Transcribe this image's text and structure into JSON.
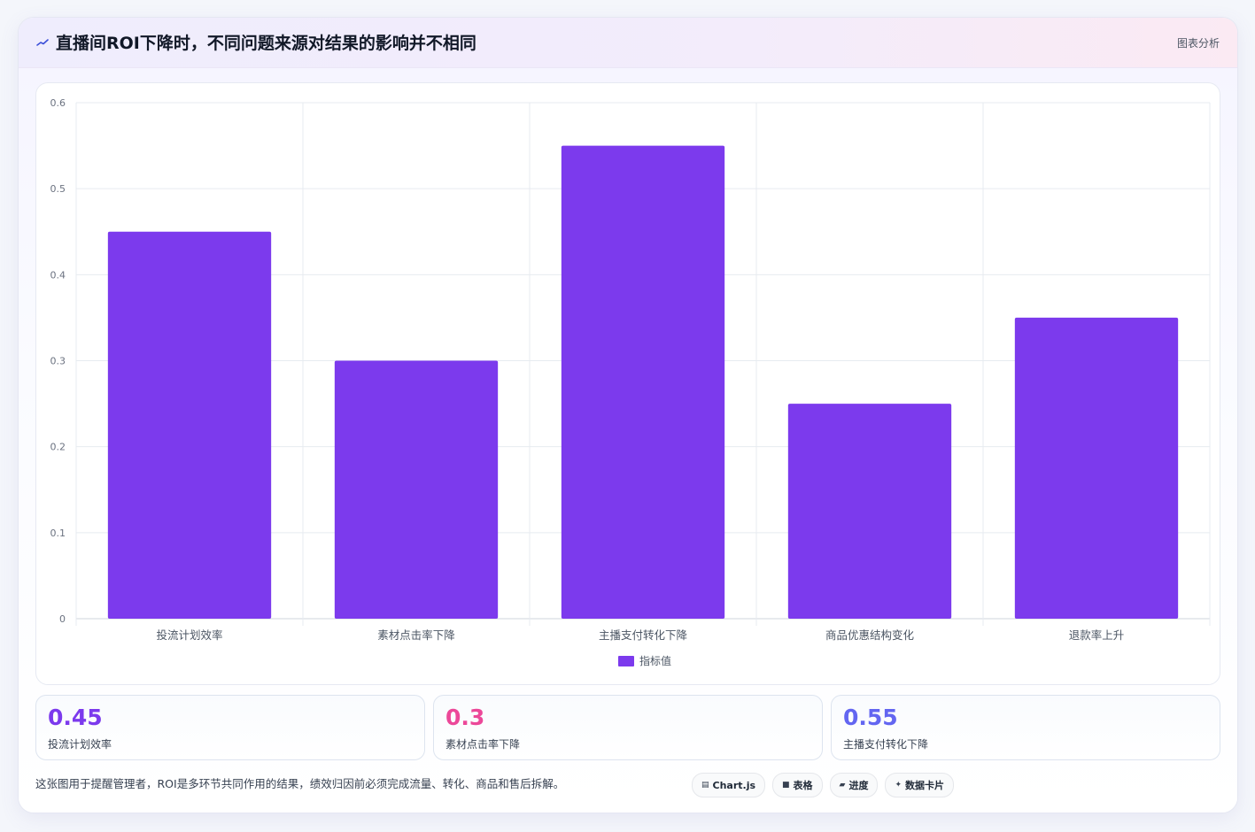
{
  "header": {
    "title": "直播间ROI下降时，不同问题来源对结果的影响并不相同",
    "tag": "图表分析",
    "icon": "trend-line-icon"
  },
  "chart_data": {
    "type": "bar",
    "categories": [
      "投流计划效率",
      "素材点击率下降",
      "主播支付转化下降",
      "商品优惠结构变化",
      "退款率上升"
    ],
    "series": [
      {
        "name": "指标值",
        "values": [
          0.45,
          0.3,
          0.55,
          0.25,
          0.35
        ],
        "color": "#7c3aed"
      }
    ],
    "ylim": [
      0,
      0.6
    ],
    "yticks": [
      "0",
      "0.1",
      "0.2",
      "0.3",
      "0.4",
      "0.5",
      "0.6"
    ],
    "grid": true,
    "legend": "bottom-center"
  },
  "stats": [
    {
      "value": "0.45",
      "label": "投流计划效率",
      "color": "#7c3aed"
    },
    {
      "value": "0.3",
      "label": "素材点击率下降",
      "color": "#ec4899"
    },
    {
      "value": "0.55",
      "label": "主播支付转化下降",
      "color": "#6366f1"
    }
  ],
  "footnote": "这张图用于提醒管理者，ROI是多环节共同作用的结果，绩效归因前必须完成流量、转化、商品和售后拆解。",
  "chips": [
    {
      "icon": "chart-icon",
      "glyph": "▤",
      "label": "Chart.js"
    },
    {
      "icon": "table-icon",
      "glyph": "■",
      "label": "表格"
    },
    {
      "icon": "progress-icon",
      "glyph": "▰",
      "label": "进度"
    },
    {
      "icon": "card-icon",
      "glyph": "✦",
      "label": "数据卡片"
    }
  ]
}
